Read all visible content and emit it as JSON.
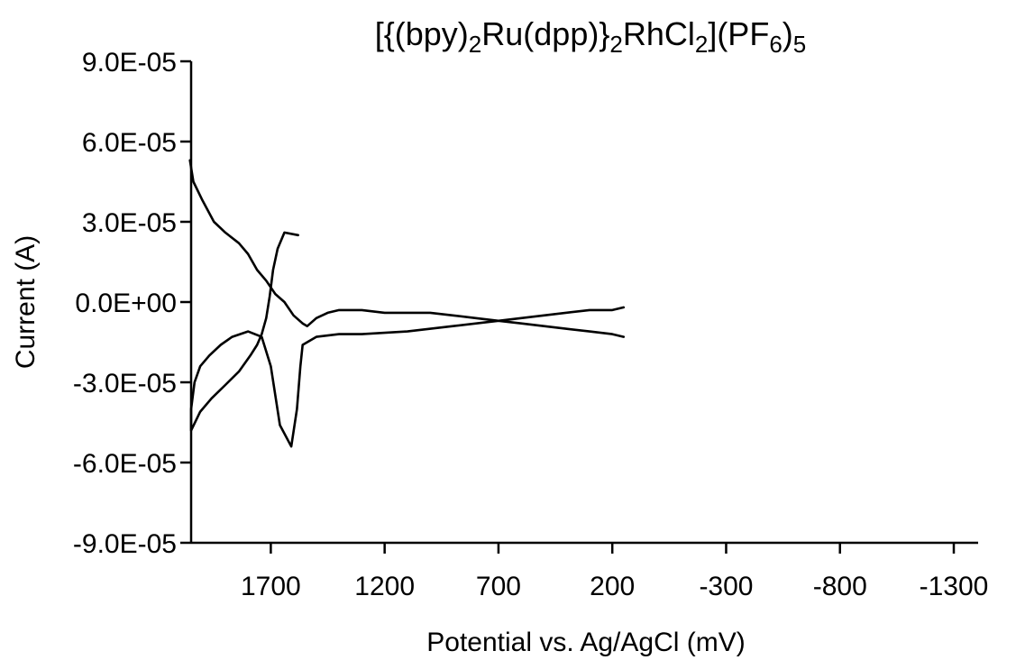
{
  "chart_data": {
    "type": "line",
    "title": {
      "parts": [
        {
          "text": "[{(bpy)",
          "sub": false
        },
        {
          "text": "2",
          "sub": true
        },
        {
          "text": "Ru(dpp)}",
          "sub": false
        },
        {
          "text": "2",
          "sub": true
        },
        {
          "text": "RhCl",
          "sub": false
        },
        {
          "text": "2",
          "sub": true
        },
        {
          "text": "](PF",
          "sub": false
        },
        {
          "text": "6",
          "sub": true
        },
        {
          "text": ")",
          "sub": false
        },
        {
          "text": "5",
          "sub": true
        }
      ]
    },
    "xlabel": "Potential vs. Ag/AgCl (mV)",
    "ylabel": "Current (A)",
    "x_reversed": true,
    "xlim": [
      2050,
      -1300
    ],
    "ylim": [
      -9e-05,
      9e-05
    ],
    "x_ticks": [
      1700,
      1200,
      700,
      200,
      -300,
      -800,
      -1300
    ],
    "x_tick_labels": [
      "1700",
      "1200",
      "700",
      "200",
      "-300",
      "-800",
      "-1300"
    ],
    "y_ticks": [
      -9e-05,
      -6e-05,
      -3e-05,
      0,
      3e-05,
      6e-05,
      9e-05
    ],
    "y_tick_labels": [
      "-9.0E-05",
      "-6.0E-05",
      "-3.0E-05",
      "0.0E+00",
      "3.0E-05",
      "6.0E-05",
      "9.0E-05"
    ],
    "grid": false,
    "series": [
      {
        "x": [
          1580,
          1640,
          1670,
          1690,
          1705,
          1720,
          1740,
          1760,
          1790,
          1840,
          1900,
          1960,
          2010,
          2050,
          2050,
          2035,
          2010,
          1970,
          1920,
          1870,
          1800,
          1740,
          1700,
          1660,
          1610,
          1585,
          1570,
          1560,
          1500,
          1400,
          1300,
          1100,
          900,
          700,
          500,
          300,
          200,
          150
        ],
        "y": [
          2.5e-05,
          2.6e-05,
          2e-05,
          1.2e-05,
          2e-06,
          -6e-06,
          -1.2e-05,
          -1.6e-05,
          -2e-05,
          -2.6e-05,
          -3.1e-05,
          -3.6e-05,
          -4.1e-05,
          -4.8e-05,
          -4e-05,
          -3e-05,
          -2.4e-05,
          -2e-05,
          -1.6e-05,
          -1.3e-05,
          -1.1e-05,
          -1.3e-05,
          -2.4e-05,
          -4.6e-05,
          -5.4e-05,
          -4e-05,
          -2.4e-05,
          -1.6e-05,
          -1.3e-05,
          -1.2e-05,
          -1.2e-05,
          -1.1e-05,
          -9e-06,
          -7e-06,
          -5e-06,
          -3e-06,
          -3e-06,
          -2e-06
        ]
      },
      {
        "x": [
          150,
          200,
          300,
          400,
          500,
          600,
          700,
          800,
          900,
          1000,
          1100,
          1200,
          1300,
          1400,
          1450,
          1500,
          1540,
          1560
        ],
        "y": [
          -1.3e-05,
          -1.2e-05,
          -1.1e-05,
          -1e-05,
          -9e-06,
          -8e-06,
          -7e-06,
          -6e-06,
          -5e-06,
          -4e-06,
          -4e-06,
          -4e-06,
          -3e-06,
          -3e-06,
          -4e-06,
          -6e-06,
          -9e-06,
          -8e-06
        ]
      },
      {
        "x": [
          1560,
          1600,
          1640,
          1680,
          1720,
          1760,
          1800,
          1840,
          1900,
          1950,
          2000,
          2040,
          2055
        ],
        "y": [
          -8e-06,
          -5e-06,
          0,
          3e-06,
          8e-06,
          1.2e-05,
          1.8e-05,
          2.2e-05,
          2.6e-05,
          3e-05,
          3.8e-05,
          4.5e-05,
          5.3e-05
        ]
      }
    ]
  }
}
